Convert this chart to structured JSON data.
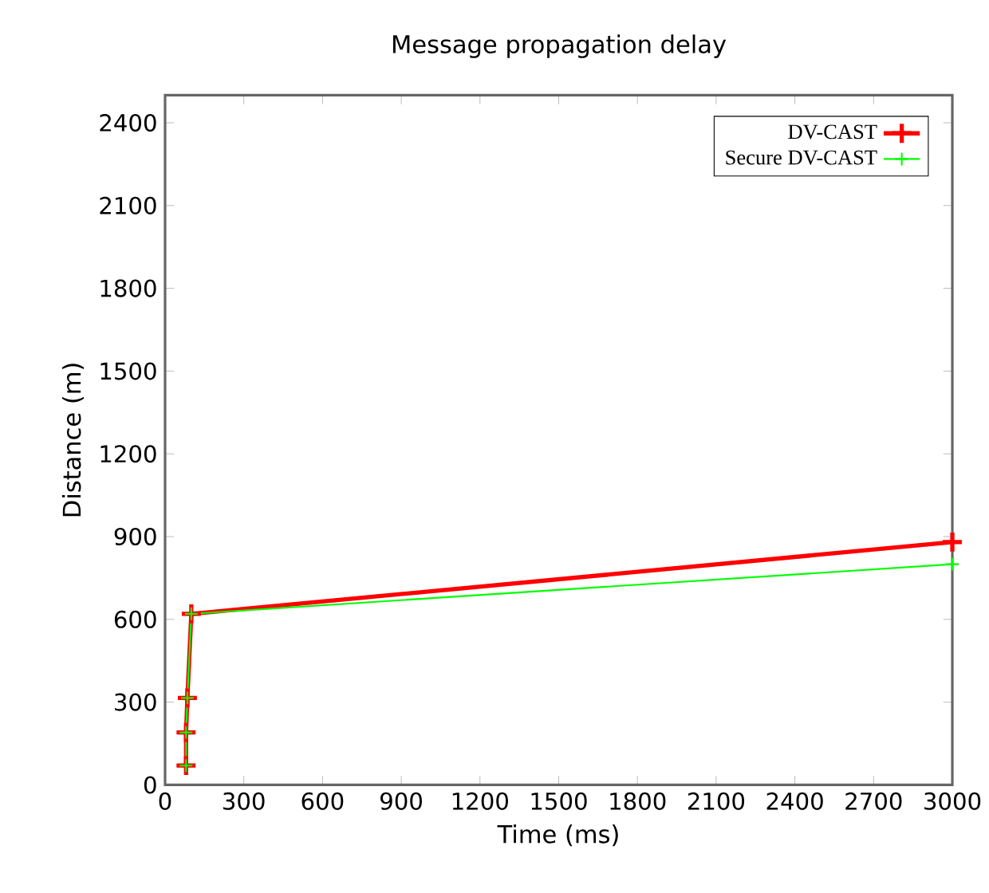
{
  "chart_data": {
    "type": "line",
    "title": "Message propagation delay",
    "xlabel": "Time (ms)",
    "ylabel": "Distance (m)",
    "xlim": [
      0,
      3000
    ],
    "ylim": [
      0,
      2500
    ],
    "xticks": [
      0,
      300,
      600,
      900,
      1200,
      1500,
      1800,
      2100,
      2400,
      2700,
      3000
    ],
    "yticks": [
      0,
      300,
      600,
      900,
      1200,
      1500,
      1800,
      2100,
      2400
    ],
    "grid": false,
    "legend": "top right",
    "series": [
      {
        "name": "DV-CAST",
        "color": "#ff0000",
        "marker": "cross",
        "x": [
          80,
          80,
          85,
          100,
          3000
        ],
        "values": [
          70,
          190,
          315,
          620,
          880
        ]
      },
      {
        "name": "Secure DV-CAST",
        "color": "#00ff00",
        "marker": "cross",
        "x": [
          80,
          80,
          85,
          100,
          3000
        ],
        "values": [
          70,
          190,
          315,
          620,
          800
        ]
      }
    ]
  }
}
